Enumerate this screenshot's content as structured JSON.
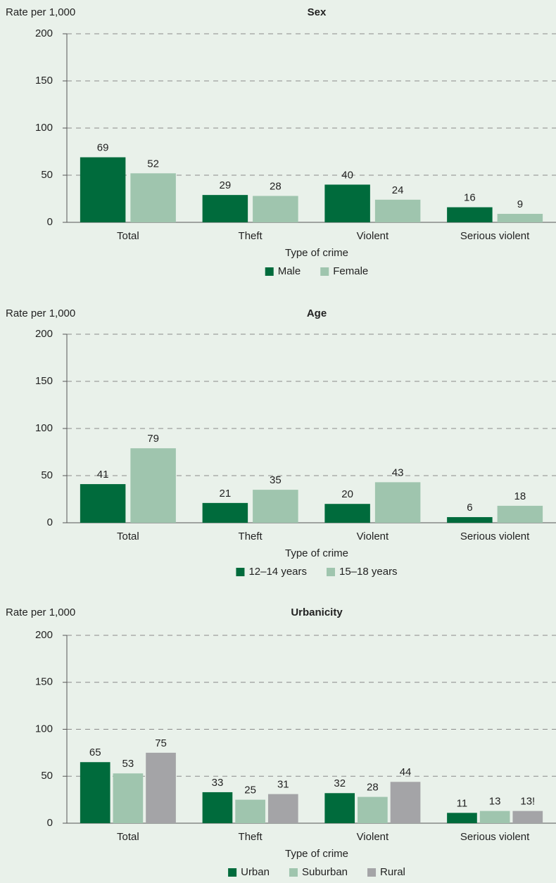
{
  "chart_data": [
    {
      "type": "bar",
      "title": "Sex",
      "y_label": "Rate per 1,000",
      "x_label": "Type of crime",
      "categories": [
        "Total",
        "Theft",
        "Violent",
        "Serious violent"
      ],
      "series": [
        {
          "name": "Male",
          "color": "#006b3c",
          "values": [
            69,
            29,
            40,
            16
          ]
        },
        {
          "name": "Female",
          "color": "#9fc5ae",
          "values": [
            52,
            28,
            24,
            9
          ]
        }
      ],
      "ylim": [
        0,
        200
      ],
      "yticks": [
        0,
        50,
        100,
        150,
        200
      ],
      "grid": true,
      "legend": "bottom"
    },
    {
      "type": "bar",
      "title": "Age",
      "y_label": "Rate per 1,000",
      "x_label": "Type of crime",
      "categories": [
        "Total",
        "Theft",
        "Violent",
        "Serious violent"
      ],
      "series": [
        {
          "name": "12–14 years",
          "color": "#006b3c",
          "values": [
            41,
            21,
            20,
            6
          ]
        },
        {
          "name": "15–18 years",
          "color": "#9fc5ae",
          "values": [
            79,
            35,
            43,
            18
          ]
        }
      ],
      "ylim": [
        0,
        200
      ],
      "yticks": [
        0,
        50,
        100,
        150,
        200
      ],
      "grid": true,
      "legend": "bottom"
    },
    {
      "type": "bar",
      "title": "Urbanicity",
      "y_label": "Rate per 1,000",
      "x_label": "Type of crime",
      "categories": [
        "Total",
        "Theft",
        "Violent",
        "Serious violent"
      ],
      "series": [
        {
          "name": "Urban",
          "color": "#006b3c",
          "values": [
            65,
            33,
            32,
            11
          ]
        },
        {
          "name": "Suburban",
          "color": "#9fc5ae",
          "values": [
            53,
            25,
            28,
            13
          ]
        },
        {
          "name": "Rural",
          "color": "#a4a4a7",
          "values": [
            75,
            31,
            44,
            13
          ],
          "value_labels": [
            "75",
            "31",
            "44",
            "13!"
          ]
        }
      ],
      "ylim": [
        0,
        200
      ],
      "yticks": [
        0,
        50,
        100,
        150,
        200
      ],
      "grid": true,
      "legend": "bottom"
    }
  ]
}
